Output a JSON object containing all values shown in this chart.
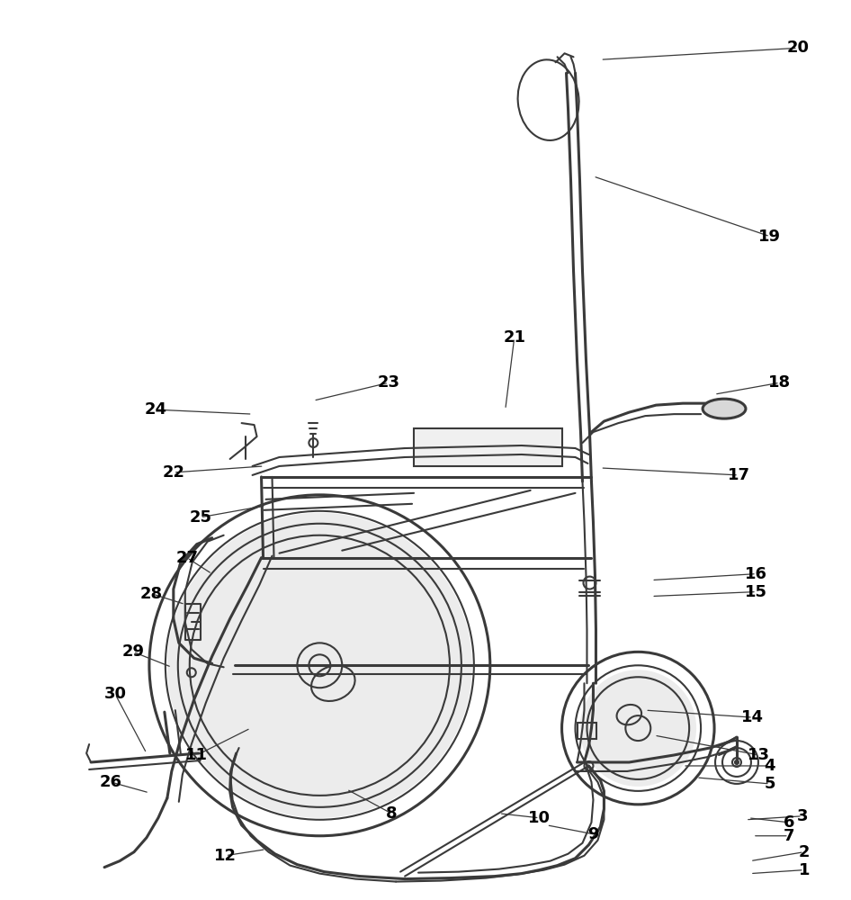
{
  "bg_color": "#ffffff",
  "lc": "#3a3a3a",
  "lc2": "#5a5a5a",
  "figsize": [
    9.46,
    10.0
  ],
  "dpi": 100,
  "labels": [
    [
      1,
      895,
      968,
      835,
      972
    ],
    [
      2,
      895,
      948,
      835,
      958
    ],
    [
      3,
      893,
      908,
      830,
      912
    ],
    [
      4,
      857,
      852,
      760,
      852
    ],
    [
      5,
      857,
      872,
      775,
      865
    ],
    [
      6,
      878,
      915,
      833,
      910
    ],
    [
      7,
      878,
      930,
      838,
      930
    ],
    [
      8,
      435,
      905,
      385,
      878
    ],
    [
      9,
      660,
      928,
      608,
      918
    ],
    [
      10,
      600,
      910,
      555,
      905
    ],
    [
      11,
      218,
      840,
      278,
      810
    ],
    [
      12,
      250,
      952,
      295,
      945
    ],
    [
      13,
      845,
      840,
      728,
      818
    ],
    [
      14,
      838,
      798,
      718,
      790
    ],
    [
      15,
      842,
      658,
      725,
      663
    ],
    [
      16,
      842,
      638,
      725,
      645
    ],
    [
      17,
      822,
      528,
      668,
      520
    ],
    [
      18,
      868,
      425,
      795,
      438
    ],
    [
      19,
      857,
      262,
      660,
      195
    ],
    [
      20,
      888,
      52,
      668,
      65
    ],
    [
      21,
      572,
      375,
      562,
      455
    ],
    [
      22,
      192,
      525,
      293,
      518
    ],
    [
      23,
      432,
      425,
      348,
      445
    ],
    [
      24,
      172,
      455,
      280,
      460
    ],
    [
      25,
      222,
      575,
      295,
      562
    ],
    [
      26,
      122,
      870,
      165,
      882
    ],
    [
      27,
      207,
      620,
      235,
      638
    ],
    [
      28,
      167,
      660,
      205,
      672
    ],
    [
      29,
      147,
      725,
      190,
      742
    ],
    [
      30,
      127,
      772,
      162,
      838
    ]
  ]
}
